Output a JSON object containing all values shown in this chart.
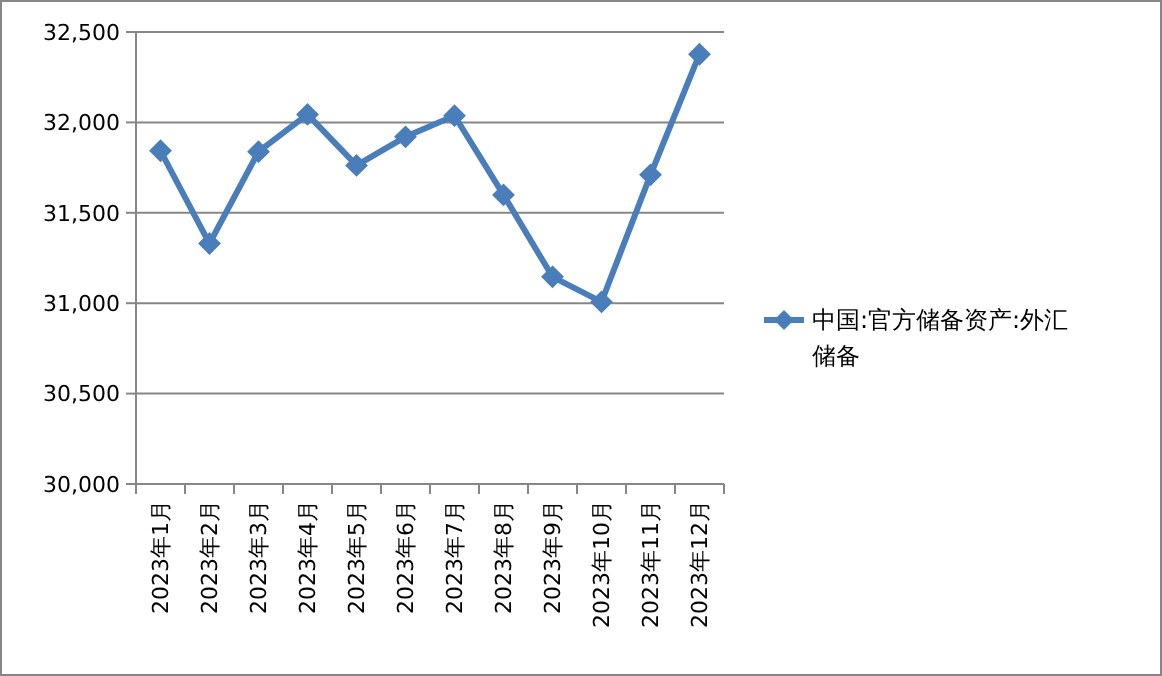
{
  "chart_data": {
    "type": "line",
    "categories": [
      "2023年1月",
      "2023年2月",
      "2023年3月",
      "2023年4月",
      "2023年5月",
      "2023年6月",
      "2023年7月",
      "2023年8月",
      "2023年9月",
      "2023年10月",
      "2023年11月",
      "2023年12月"
    ],
    "series": [
      {
        "name": "中国:官方储备资产:外汇储备",
        "color": "#4a7ebb",
        "values": [
          31843,
          31330,
          31838,
          32044,
          31762,
          31920,
          32037,
          31599,
          31146,
          31007,
          31710,
          32377
        ]
      }
    ],
    "ylim": [
      30000,
      32500
    ],
    "yticks": [
      {
        "value": 30000,
        "label": "30,000"
      },
      {
        "value": 30500,
        "label": "30,500"
      },
      {
        "value": 31000,
        "label": "31,000"
      },
      {
        "value": 31500,
        "label": "31,500"
      },
      {
        "value": 32000,
        "label": "32,000"
      },
      {
        "value": 32500,
        "label": "32,500"
      }
    ],
    "grid": "y",
    "legend": "right",
    "marker": "diamond",
    "line_style": "solid"
  }
}
